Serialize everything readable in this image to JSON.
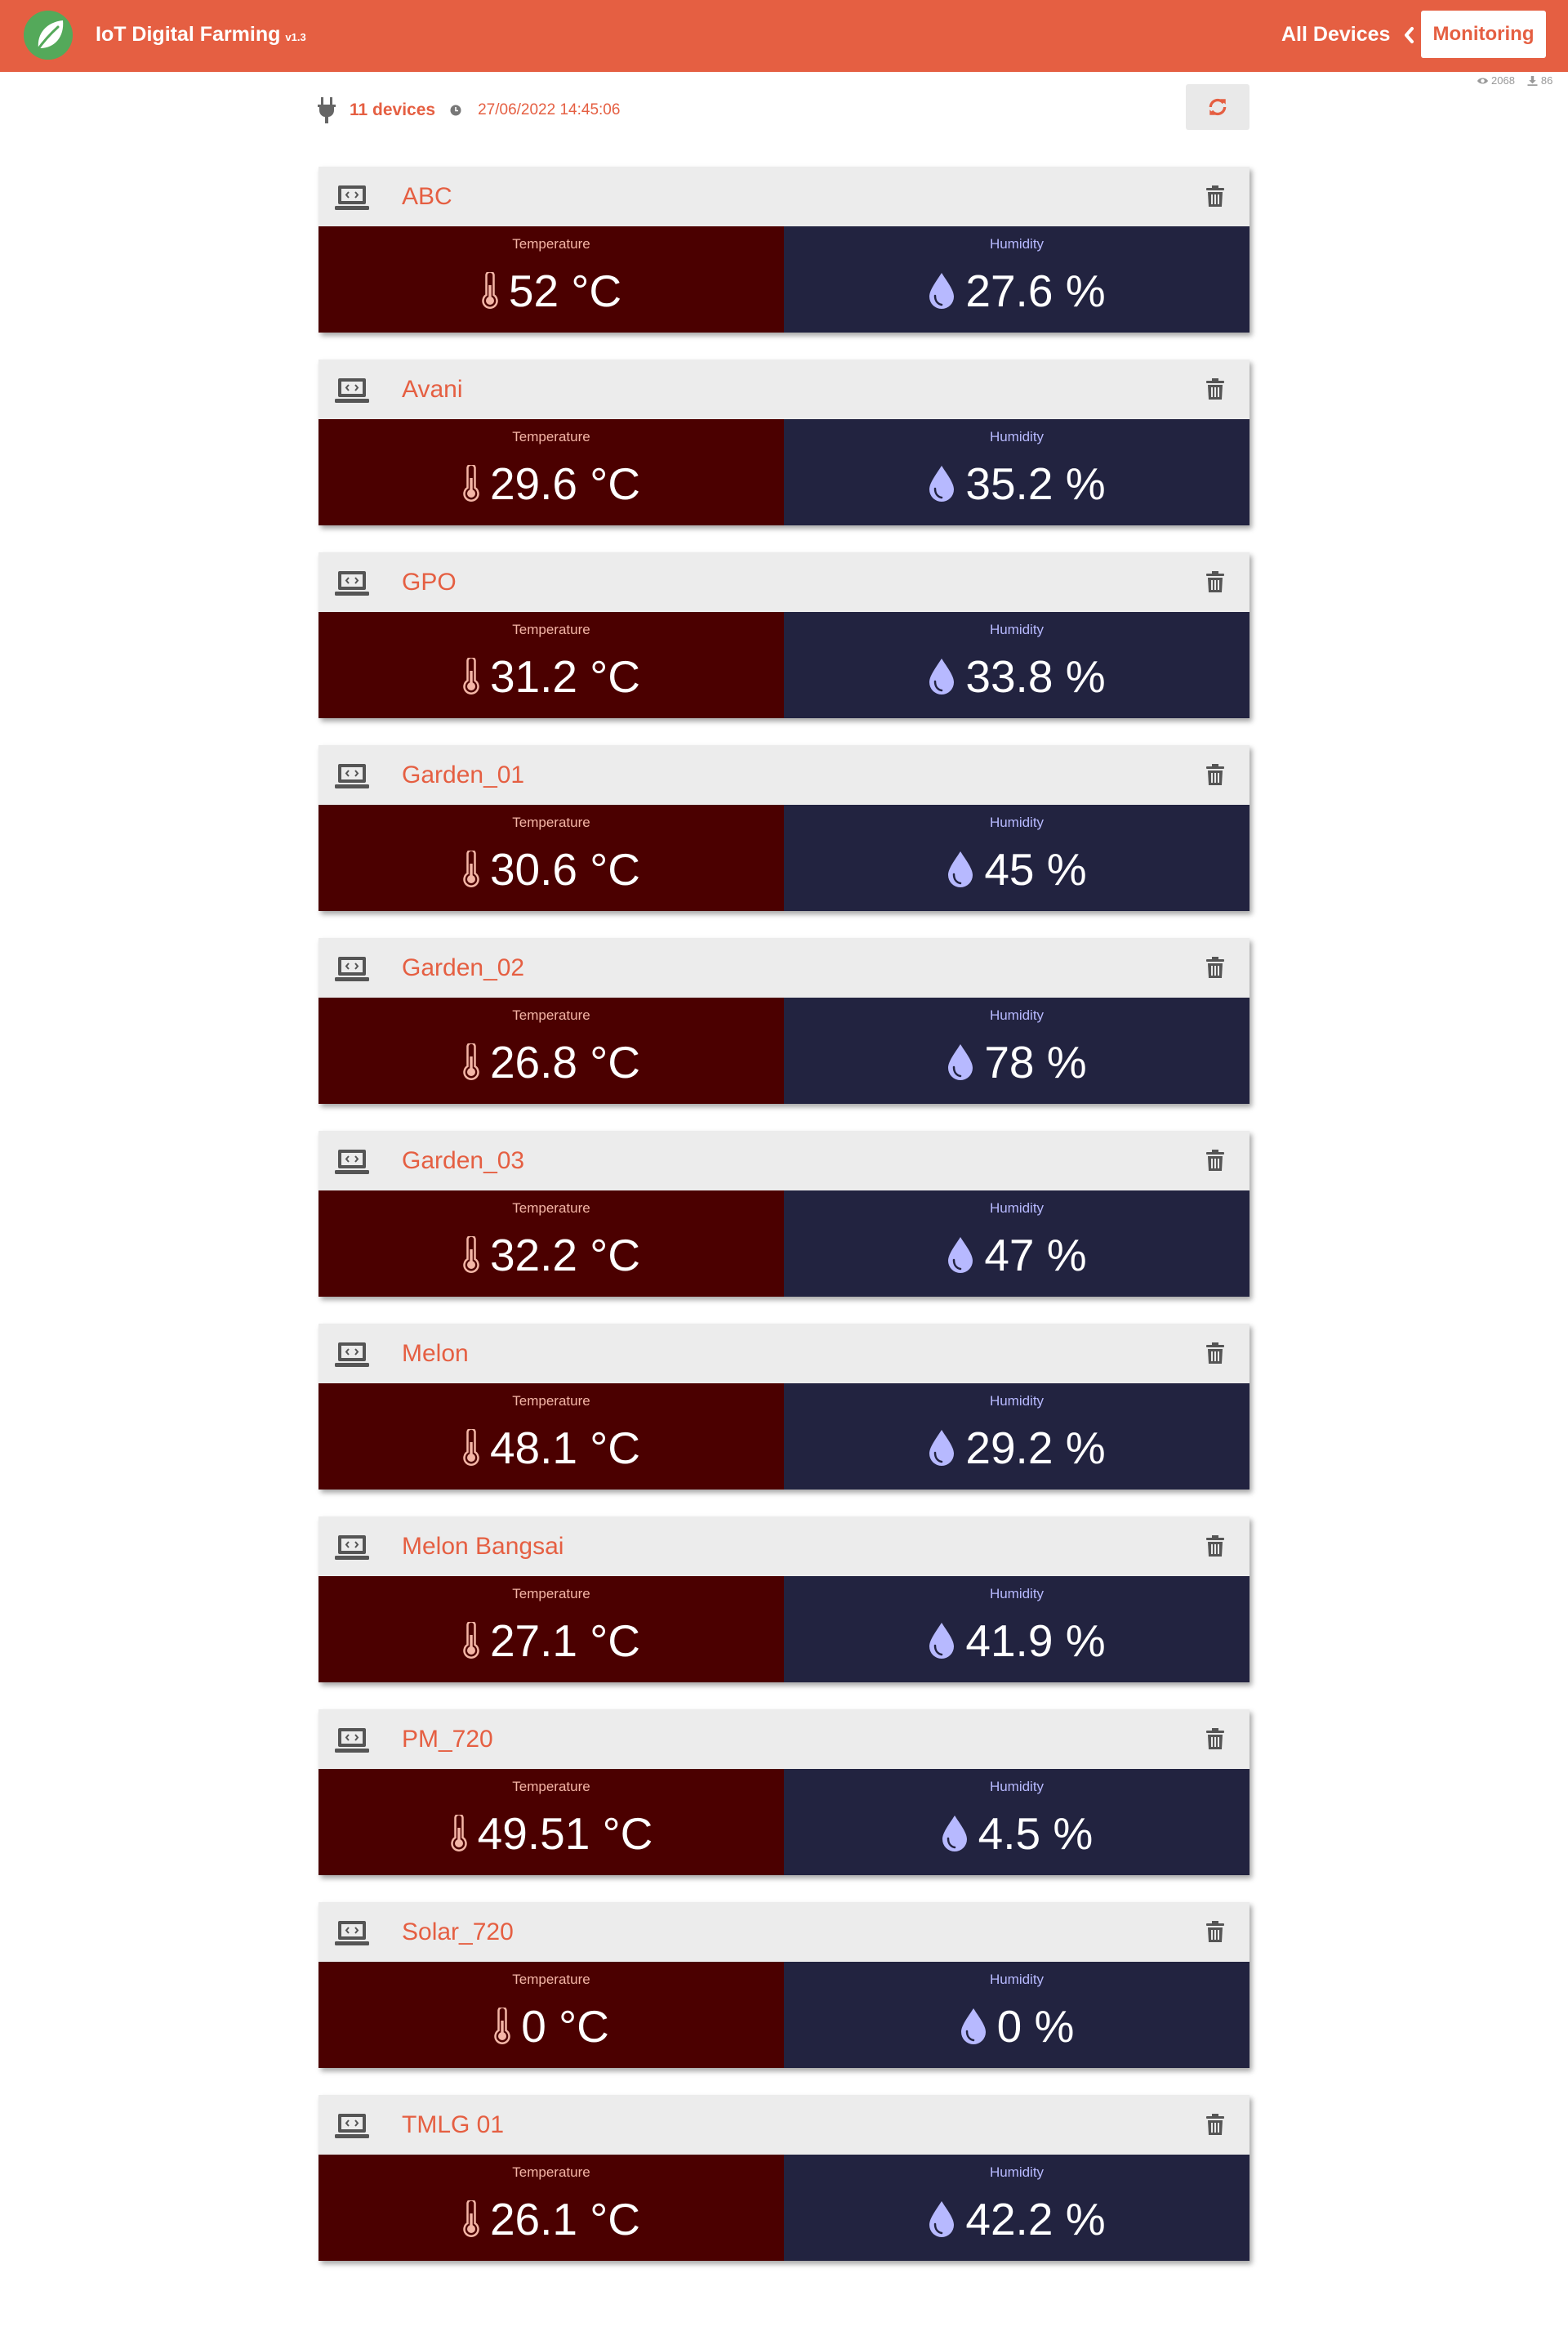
{
  "header": {
    "title": "IoT Digital Farming",
    "version": "v1.3",
    "nav_all_devices": "All Devices",
    "nav_monitoring": "Monitoring"
  },
  "stats": {
    "views": "2068",
    "downloads": "86"
  },
  "summary": {
    "count_label": "11 devices",
    "updated": "27/06/2022 14:45:06"
  },
  "labels": {
    "temperature": "Temperature",
    "humidity": "Humidity"
  },
  "colors": {
    "brand": "#e55f42",
    "temp_bg": "#4b0000",
    "hum_bg": "#222340",
    "leaf": "#54a95a"
  },
  "icons": {
    "logo": "leaf-icon",
    "plug": "plug-icon",
    "clock": "clock-icon",
    "refresh": "refresh-icon",
    "device": "laptop-code-icon",
    "delete": "trash-icon",
    "temperature": "thermometer-icon",
    "humidity": "droplet-icon"
  },
  "devices": [
    {
      "name": "ABC",
      "temperature": "52 °C",
      "humidity": "27.6 %"
    },
    {
      "name": "Avani",
      "temperature": "29.6 °C",
      "humidity": "35.2 %"
    },
    {
      "name": "GPO",
      "temperature": "31.2 °C",
      "humidity": "33.8 %"
    },
    {
      "name": "Garden_01",
      "temperature": "30.6 °C",
      "humidity": "45 %"
    },
    {
      "name": "Garden_02",
      "temperature": "26.8 °C",
      "humidity": "78 %"
    },
    {
      "name": "Garden_03",
      "temperature": "32.2 °C",
      "humidity": "47 %"
    },
    {
      "name": "Melon",
      "temperature": "48.1 °C",
      "humidity": "29.2 %"
    },
    {
      "name": "Melon Bangsai",
      "temperature": "27.1 °C",
      "humidity": "41.9 %"
    },
    {
      "name": "PM_720",
      "temperature": "49.51 °C",
      "humidity": "4.5 %"
    },
    {
      "name": "Solar_720",
      "temperature": "0 °C",
      "humidity": "0 %"
    },
    {
      "name": "TMLG 01",
      "temperature": "26.1 °C",
      "humidity": "42.2 %"
    }
  ]
}
